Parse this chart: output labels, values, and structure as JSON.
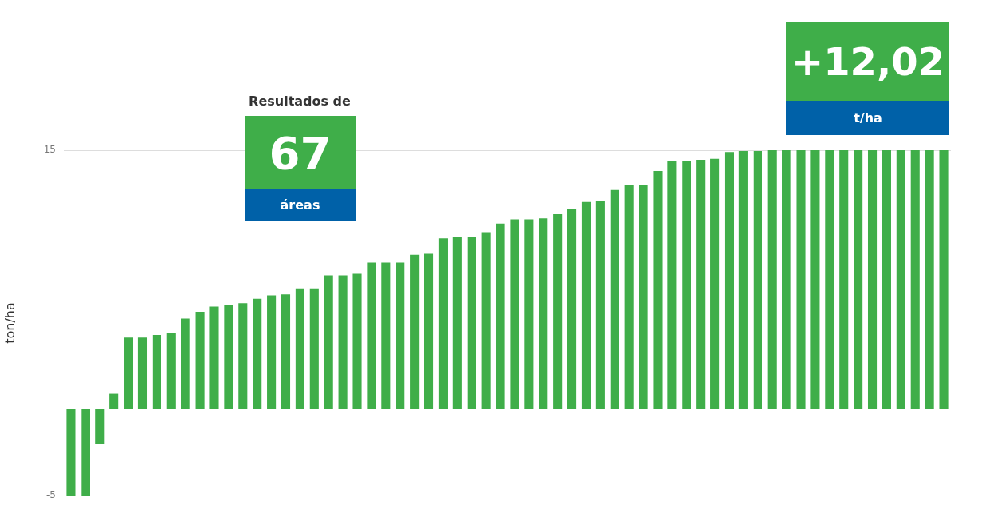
{
  "chart_data": {
    "type": "bar",
    "ylabel": "ton/ha",
    "annotations": [
      "Resultados de",
      "67",
      "áreas",
      "+12,02",
      "t/ha"
    ],
    "categories": [
      null,
      null,
      null,
      null,
      null,
      null,
      null,
      null,
      null,
      null,
      null,
      null,
      null,
      null,
      null,
      null,
      null,
      null,
      null,
      null,
      null,
      null,
      null,
      null,
      null,
      null,
      null,
      null,
      null,
      null,
      null,
      null,
      null,
      null,
      null,
      null,
      null,
      null,
      null,
      null,
      null,
      null,
      null,
      null,
      null,
      null,
      null,
      null,
      null,
      null,
      null,
      null,
      null,
      null,
      null,
      null,
      null,
      null,
      null,
      null,
      null,
      null
    ],
    "values": [
      -5,
      -5,
      -2,
      0.9,
      4.15,
      4.15,
      4.3,
      4.45,
      5.25,
      5.65,
      5.95,
      6.05,
      6.15,
      6.4,
      6.6,
      6.65,
      7,
      7,
      7.75,
      7.75,
      7.85,
      8.5,
      8.5,
      8.5,
      8.95,
      9,
      9.9,
      10,
      10,
      10.25,
      10.75,
      11,
      11,
      11.05,
      11.3,
      11.6,
      12,
      12.05,
      12.7,
      13,
      13,
      13.8,
      14.35,
      14.35,
      14.45,
      14.5,
      14.9,
      14.95,
      14.95,
      15,
      15,
      15,
      15,
      15,
      15,
      15,
      15,
      15,
      15,
      15,
      15,
      15
    ],
    "color": "#3fae49",
    "ylim": [
      -5,
      15
    ],
    "yticks": [
      -5,
      15
    ],
    "grid": "y"
  }
}
